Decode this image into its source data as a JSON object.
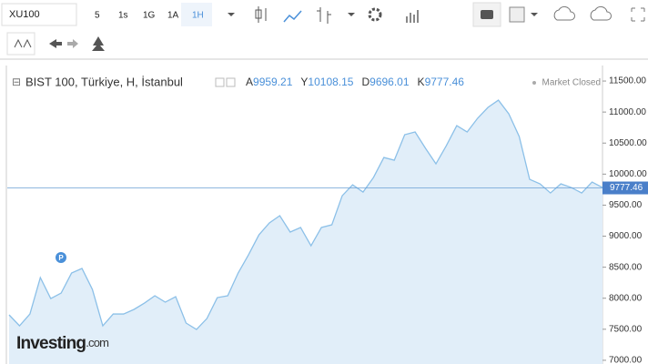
{
  "toolbar": {
    "symbol": "XU100",
    "intervals": [
      "5",
      "1s",
      "1G",
      "1A",
      "1H"
    ]
  },
  "chart_data": {
    "type": "line",
    "title": "BIST 100, Türkiye, H, İstanbul",
    "ohlc": [
      {
        "letter": "A",
        "value": 9959.21
      },
      {
        "letter": "Y",
        "value": 10108.15
      },
      {
        "letter": "D",
        "value": 9696.01
      },
      {
        "letter": "K",
        "value": 9777.46
      }
    ],
    "status": "Market Closed",
    "marker": "P",
    "watermark": [
      "Investing",
      ".com"
    ],
    "color": "#8cc0e8",
    "values": [
      7732,
      7556,
      7746,
      8333,
      7995,
      8083,
      8406,
      8480,
      8142,
      7556,
      7746,
      7746,
      7820,
      7922,
      8040,
      7937,
      8025,
      7600,
      7497,
      7673,
      8010,
      8040,
      8406,
      8700,
      9022,
      9213,
      9330,
      9066,
      9140,
      8846,
      9140,
      9183,
      9652,
      9828,
      9711,
      9945,
      10268,
      10224,
      10635,
      10679,
      10415,
      10166,
      10459,
      10781,
      10679,
      10899,
      11075,
      11192,
      10972,
      10606,
      9916,
      9843,
      9696,
      9843,
      9784,
      9696,
      9872,
      9784
    ],
    "ylim": [
      6940,
      11750
    ],
    "yticks": [
      {
        "value": 7000,
        "label": "7000.00"
      },
      {
        "value": 7500,
        "label": "7500.00"
      },
      {
        "value": 8000,
        "label": "8000.00"
      },
      {
        "value": 8500,
        "label": "8500.00"
      },
      {
        "value": 9000,
        "label": "9000.00"
      },
      {
        "value": 9500,
        "label": "9500.00"
      },
      {
        "value": 10000,
        "label": "10000.00"
      },
      {
        "value": 10500,
        "label": "10500.00"
      },
      {
        "value": 11000,
        "label": "11000.00"
      },
      {
        "value": 11500,
        "label": "11500.00"
      }
    ]
  }
}
